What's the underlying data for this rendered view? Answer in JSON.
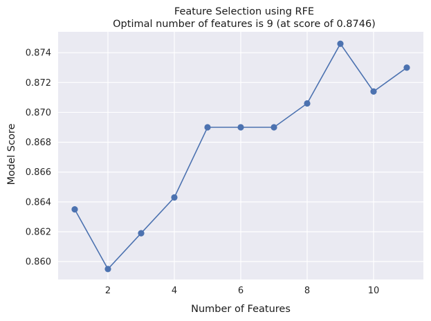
{
  "chart_data": {
    "type": "line",
    "title": "Feature Selection using RFE",
    "subtitle": "Optimal number of features is 9 (at score of 0.8746)",
    "xlabel": "Number of Features",
    "ylabel": "Model Score",
    "xlim": [
      0.5,
      11.5
    ],
    "ylim": [
      0.8588,
      0.8754
    ],
    "xticks": [
      2,
      4,
      6,
      8,
      10
    ],
    "xtick_labels": [
      "2",
      "4",
      "6",
      "8",
      "10"
    ],
    "yticks": [
      0.86,
      0.862,
      0.864,
      0.866,
      0.868,
      0.87,
      0.872,
      0.874
    ],
    "ytick_labels": [
      "0.860",
      "0.862",
      "0.864",
      "0.866",
      "0.868",
      "0.870",
      "0.872",
      "0.874"
    ],
    "grid": true,
    "background": "#eaeaf2",
    "line_color": "#4c72b0",
    "series": [
      {
        "x": [
          1,
          2,
          3,
          4,
          5,
          6,
          7,
          8,
          9,
          10,
          11
        ],
        "y": [
          0.8635,
          0.8595,
          0.8619,
          0.8643,
          0.869,
          0.869,
          0.869,
          0.8706,
          0.8746,
          0.8714,
          0.873
        ]
      }
    ]
  }
}
